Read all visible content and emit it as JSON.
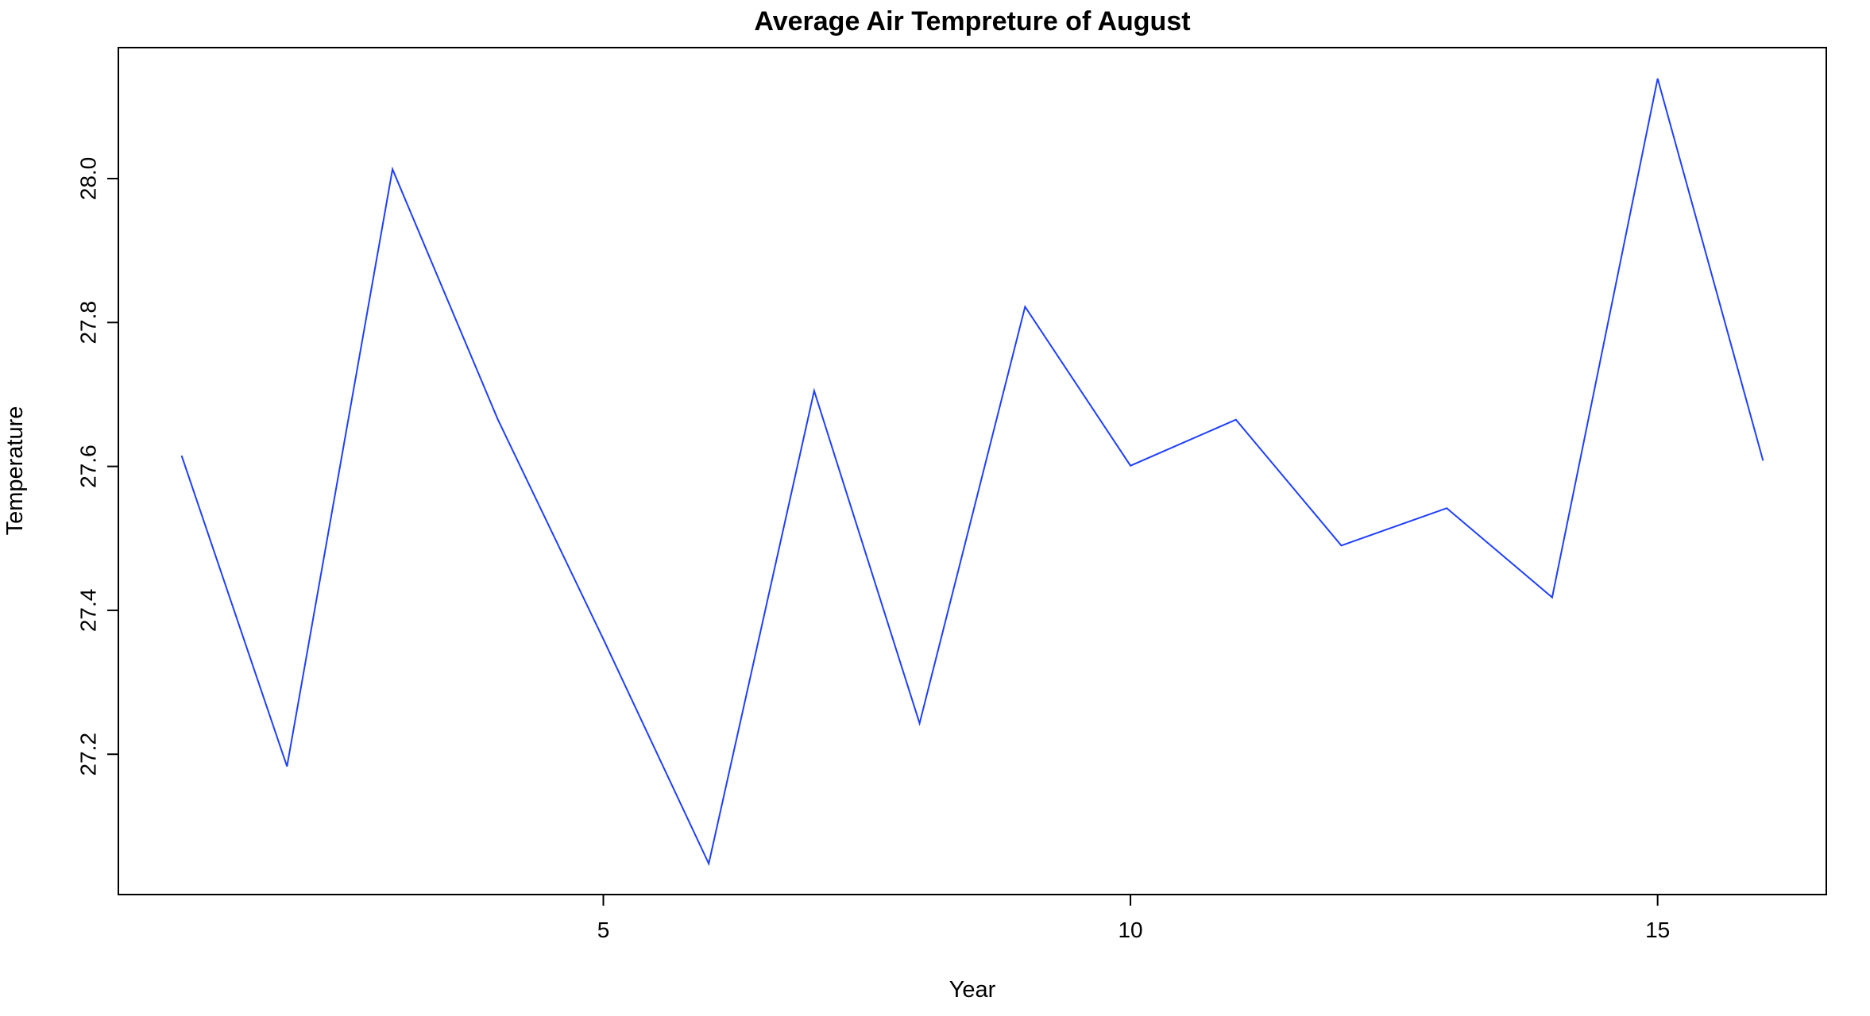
{
  "chart_data": {
    "type": "line",
    "title": "Average Air Tempreture of August",
    "xlabel": "Year",
    "ylabel": "Temperature",
    "x": [
      1,
      2,
      3,
      4,
      5,
      6,
      7,
      8,
      9,
      10,
      11,
      12,
      13,
      14,
      15,
      16
    ],
    "series": [
      {
        "values": [
          27.615,
          27.183,
          28.013,
          27.665,
          27.36,
          27.048,
          27.705,
          27.243,
          27.822,
          27.601,
          27.665,
          27.49,
          27.542,
          27.418,
          28.139,
          27.608
        ],
        "color": "#1f3fff"
      }
    ],
    "xlim": [
      0.4,
      16.6
    ],
    "ylim": [
      27.005,
      28.182
    ],
    "xticks": [
      5,
      10,
      15
    ],
    "yticks": [
      27.2,
      27.4,
      27.6,
      27.8,
      28.0
    ],
    "ytick_labels": [
      "27.2",
      "27.4",
      "27.6",
      "27.8",
      "28.0"
    ],
    "grid": false,
    "legend": "none"
  }
}
